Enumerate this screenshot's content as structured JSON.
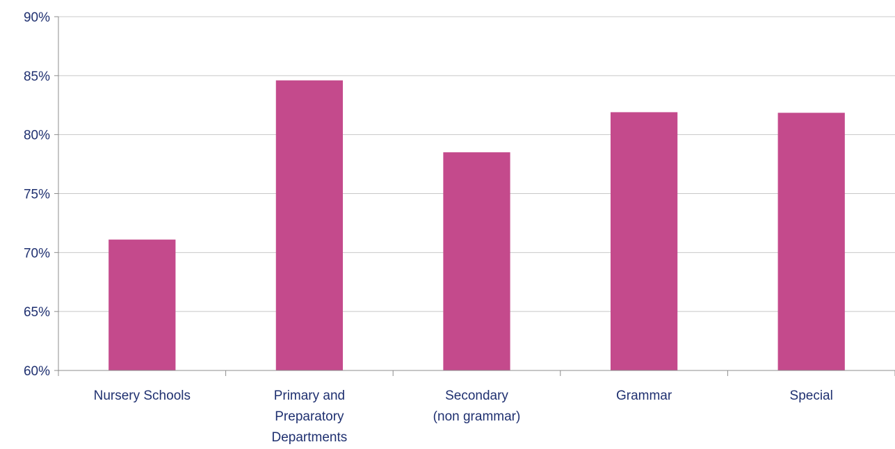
{
  "chart_data": {
    "type": "bar",
    "title": "",
    "xlabel": "",
    "ylabel": "",
    "categories": [
      [
        "Nursery Schools"
      ],
      [
        "Primary and",
        "Preparatory",
        "Departments"
      ],
      [
        "Secondary",
        "(non grammar)"
      ],
      [
        "Grammar"
      ],
      [
        "Special"
      ]
    ],
    "values": [
      71.1,
      84.6,
      78.5,
      81.9,
      81.85
    ],
    "ylim": [
      60,
      90
    ],
    "yticks": [
      60,
      65,
      70,
      75,
      80,
      85,
      90
    ],
    "ytick_suffix": "%",
    "grid": true,
    "legend": "none",
    "bar_color": "#c44a8c",
    "grid_color": "#c8c8c8",
    "axis_color": "#8c8c8c",
    "label_color": "#1f3070"
  }
}
